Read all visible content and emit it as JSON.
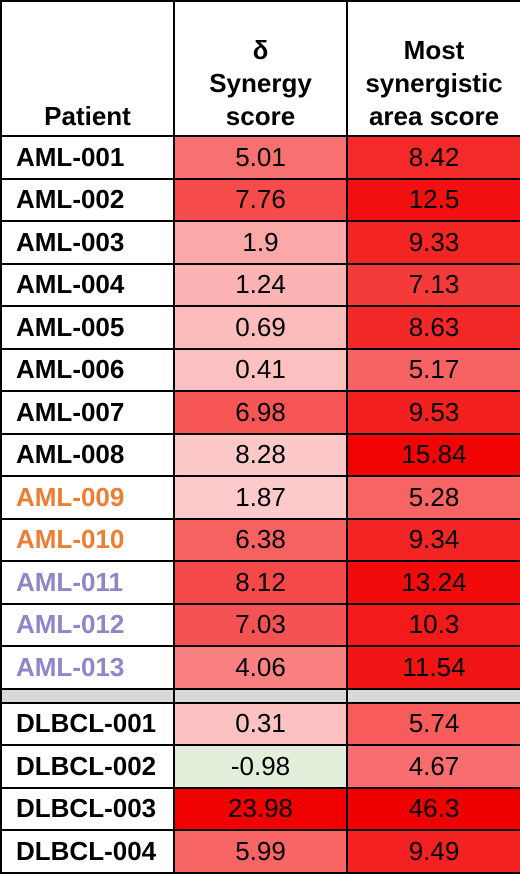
{
  "header": {
    "patient": "Patient",
    "delta_symbol": "δ",
    "delta_label": "Synergy score",
    "area_label": "Most synergistic area score"
  },
  "rows": [
    {
      "patient": "AML-001",
      "delta": "5.01",
      "area": "8.42",
      "patient_color": "#000000",
      "delta_bg": "#f87171",
      "area_bg": "#f42a2a"
    },
    {
      "patient": "AML-002",
      "delta": "7.76",
      "area": "12.5",
      "patient_color": "#000000",
      "delta_bg": "#f54b4b",
      "area_bg": "#f10f0f"
    },
    {
      "patient": "AML-003",
      "delta": "1.9",
      "area": "9.33",
      "patient_color": "#000000",
      "delta_bg": "#fba8a8",
      "area_bg": "#f32424"
    },
    {
      "patient": "AML-004",
      "delta": "1.24",
      "area": "7.13",
      "patient_color": "#000000",
      "delta_bg": "#fbb3b3",
      "area_bg": "#f53a3a"
    },
    {
      "patient": "AML-005",
      "delta": "0.69",
      "area": "8.63",
      "patient_color": "#000000",
      "delta_bg": "#fcbcbc",
      "area_bg": "#f42828"
    },
    {
      "patient": "AML-006",
      "delta": "0.41",
      "area": "5.17",
      "patient_color": "#000000",
      "delta_bg": "#fcc0c0",
      "area_bg": "#f76262"
    },
    {
      "patient": "AML-007",
      "delta": "6.98",
      "area": "9.53",
      "patient_color": "#000000",
      "delta_bg": "#f65656",
      "area_bg": "#f32020"
    },
    {
      "patient": "AML-008",
      "delta": "8.28",
      "area": "15.84",
      "patient_color": "#000000",
      "delta_bg": "#fcc8c8",
      "area_bg": "#f00404"
    },
    {
      "patient": "AML-009",
      "delta": "1.87",
      "area": "5.28",
      "patient_color": "#ed7d31",
      "delta_bg": "#fccaca",
      "area_bg": "#f76464"
    },
    {
      "patient": "AML-010",
      "delta": "6.38",
      "area": "9.34",
      "patient_color": "#ed7d31",
      "delta_bg": "#f66161",
      "area_bg": "#f32424"
    },
    {
      "patient": "AML-011",
      "delta": "8.12",
      "area": "13.24",
      "patient_color": "#8d86c9",
      "delta_bg": "#f54848",
      "area_bg": "#f10b0b"
    },
    {
      "patient": "AML-012",
      "delta": "7.03",
      "area": "10.3",
      "patient_color": "#8d86c9",
      "delta_bg": "#f55353",
      "area_bg": "#f21a1a"
    },
    {
      "patient": "AML-013",
      "delta": "4.06",
      "area": "11.54",
      "patient_color": "#8d86c9",
      "delta_bg": "#f98181",
      "area_bg": "#f11414"
    },
    {
      "separator": true
    },
    {
      "patient": "DLBCL-001",
      "delta": "0.31",
      "area": "5.74",
      "patient_color": "#000000",
      "delta_bg": "#fcc2c2",
      "area_bg": "#f75b5b"
    },
    {
      "patient": "DLBCL-002",
      "delta": "-0.98",
      "area": "4.67",
      "patient_color": "#000000",
      "delta_bg": "#e2efda",
      "area_bg": "#f86e6e"
    },
    {
      "patient": "DLBCL-003",
      "delta": "23.98",
      "area": "46.3",
      "patient_color": "#000000",
      "delta_bg": "#f00000",
      "area_bg": "#ef0000"
    },
    {
      "patient": "DLBCL-004",
      "delta": "5.99",
      "area": "9.49",
      "patient_color": "#000000",
      "delta_bg": "#f76565",
      "area_bg": "#f32121"
    }
  ]
}
